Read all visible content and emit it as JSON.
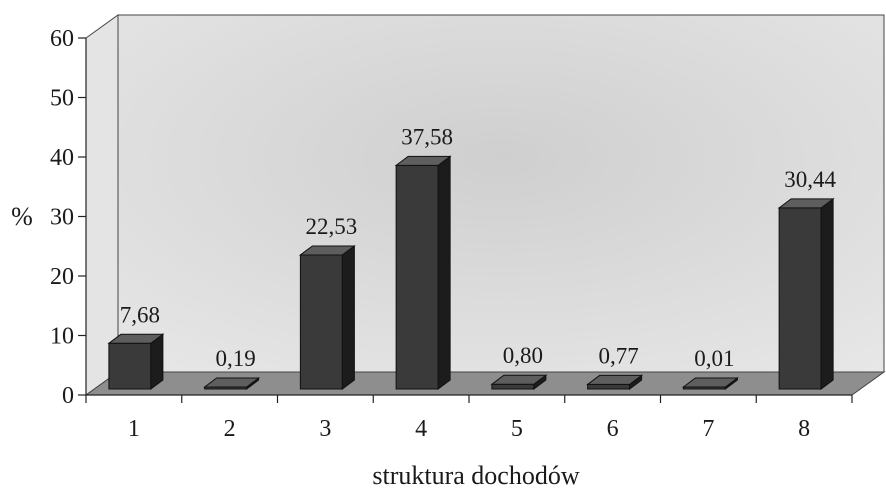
{
  "chart_data": {
    "type": "bar",
    "categories": [
      "1",
      "2",
      "3",
      "4",
      "5",
      "6",
      "7",
      "8"
    ],
    "values": [
      7.68,
      0.19,
      22.53,
      37.58,
      0.8,
      0.77,
      0.01,
      30.44
    ],
    "value_labels": [
      "7,68",
      "0,19",
      "22,53",
      "37,58",
      "0,80",
      "0,77",
      "0,01",
      "30,44"
    ],
    "title": "",
    "xlabel": "struktura dochodów",
    "ylabel": "%",
    "ylim": [
      0,
      60
    ],
    "yticks": [
      "0",
      "10",
      "20",
      "30",
      "40",
      "50",
      "60"
    ],
    "grid": false,
    "legend": "none",
    "style": "3d-bar",
    "colors": {
      "bar": "#3a3a3a",
      "bar_side": "#1c1c1c",
      "bar_top": "#5e5e5e",
      "wall": "#d6d6d6",
      "floor": "#8c8c8c",
      "text": "#1a1a1a"
    }
  }
}
